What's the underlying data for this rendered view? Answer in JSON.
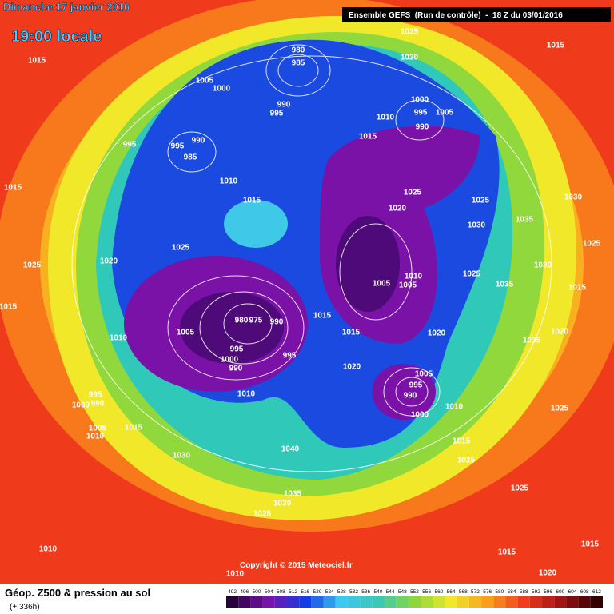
{
  "header": {
    "date": "Dimanche 17 janvier 2016",
    "time": "19:00 locale",
    "run": "Ensemble GEFS  (Run de contrôle)  -  18 Z du 03/01/2016"
  },
  "copyright": "Copyright © 2015 Meteociel.fr",
  "footer": {
    "title": "Géop. Z500 & pression au sol",
    "lead": "(+ 336h)"
  },
  "colorbar": {
    "ticks": [
      492,
      496,
      500,
      504,
      508,
      512,
      516,
      520,
      524,
      528,
      532,
      536,
      540,
      544,
      548,
      552,
      556,
      560,
      564,
      568,
      572,
      576,
      580,
      584,
      588,
      592,
      596,
      600,
      604,
      608,
      612
    ]
  },
  "isobar_labels": [
    1025,
    1015,
    1015,
    1020,
    980,
    985,
    990,
    995,
    1005,
    1000,
    1000,
    995,
    1005,
    1010,
    990,
    1015,
    995,
    995,
    990,
    985,
    1010,
    1015,
    1015,
    1025,
    1025,
    1030,
    1020,
    1030,
    1035,
    1025,
    1025,
    1020,
    1025,
    1030,
    1025,
    1010,
    1005,
    1005,
    1035,
    1015,
    1015,
    980,
    975,
    990,
    1015,
    1005,
    1010,
    1015,
    1020,
    1020,
    1035,
    995,
    995,
    1000,
    990,
    1020,
    1005,
    995,
    990,
    1010,
    995,
    1000,
    990,
    1000,
    1010,
    1025,
    1005,
    1010,
    1015,
    1015,
    1040,
    1030,
    1025,
    1025,
    1035,
    1030,
    1025,
    1010,
    1015,
    1015,
    1020,
    1010
  ]
}
